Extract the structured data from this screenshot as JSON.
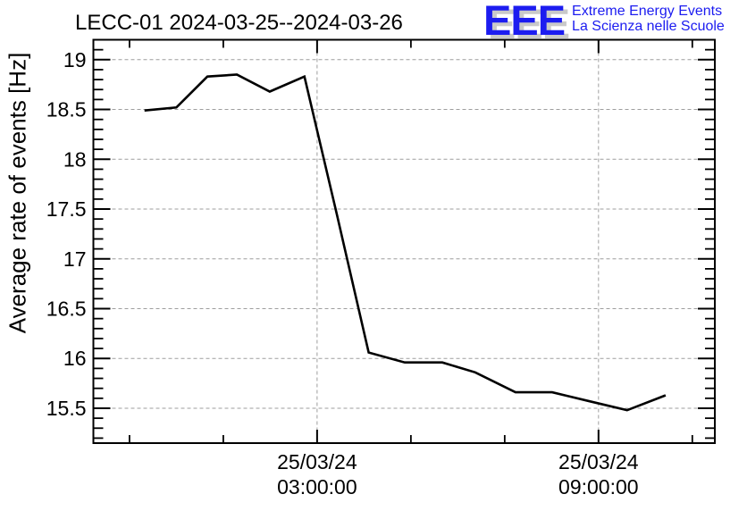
{
  "window": {
    "background": "#ffffff"
  },
  "header": {
    "title": "LECC-01 2024-03-25--2024-03-26",
    "logo": {
      "acronym": "EEE",
      "subtitle_line1": "Extreme Energy Events",
      "subtitle_line2": "La Scienza nelle Scuole",
      "text_color": "#1c1cf0",
      "shadow_color": "#c9c9c9"
    }
  },
  "chart_data": {
    "type": "line",
    "title": "LECC-01 2024-03-25--2024-03-26",
    "xlabel": "",
    "ylabel": "Average rate of events [Hz]",
    "x_unit": "hours since 2024-03-25 00:00",
    "x": [
      -0.68,
      0,
      0.66,
      1.29,
      1.99,
      2.73,
      3.42,
      4.1,
      4.87,
      5.67,
      6.37,
      7.23,
      8.01,
      8.81,
      9.61,
      10.43
    ],
    "values": [
      18.49,
      18.52,
      18.83,
      18.85,
      18.68,
      18.83,
      17.45,
      16.06,
      15.96,
      15.96,
      15.86,
      15.66,
      15.66,
      15.57,
      15.48,
      15.63
    ],
    "xlim": [
      -1.77,
      11.48
    ],
    "ylim": [
      15.15,
      19.2
    ],
    "grid": true,
    "legend": "none",
    "line_color": "#000000",
    "grid_color": "#9e9e9e",
    "axis_color": "#000000",
    "x_axis": {
      "major_ticks": [
        {
          "hours": 3,
          "label_line1": "25/03/24",
          "label_line2": "03:00:00"
        },
        {
          "hours": 9,
          "label_line1": "25/03/24",
          "label_line2": "09:00:00"
        }
      ],
      "minor_ticks_hours": [
        -1,
        1,
        5,
        7,
        11
      ]
    },
    "y_axis": {
      "major_ticks": [
        {
          "value": 19,
          "label": "19"
        },
        {
          "value": 18.5,
          "label": "18.5"
        },
        {
          "value": 18,
          "label": "18"
        },
        {
          "value": 17.5,
          "label": "17.5"
        },
        {
          "value": 17,
          "label": "17"
        },
        {
          "value": 16.5,
          "label": "16.5"
        },
        {
          "value": 16,
          "label": "16"
        },
        {
          "value": 15.5,
          "label": "15.5"
        }
      ],
      "minor_step": 0.1
    }
  }
}
